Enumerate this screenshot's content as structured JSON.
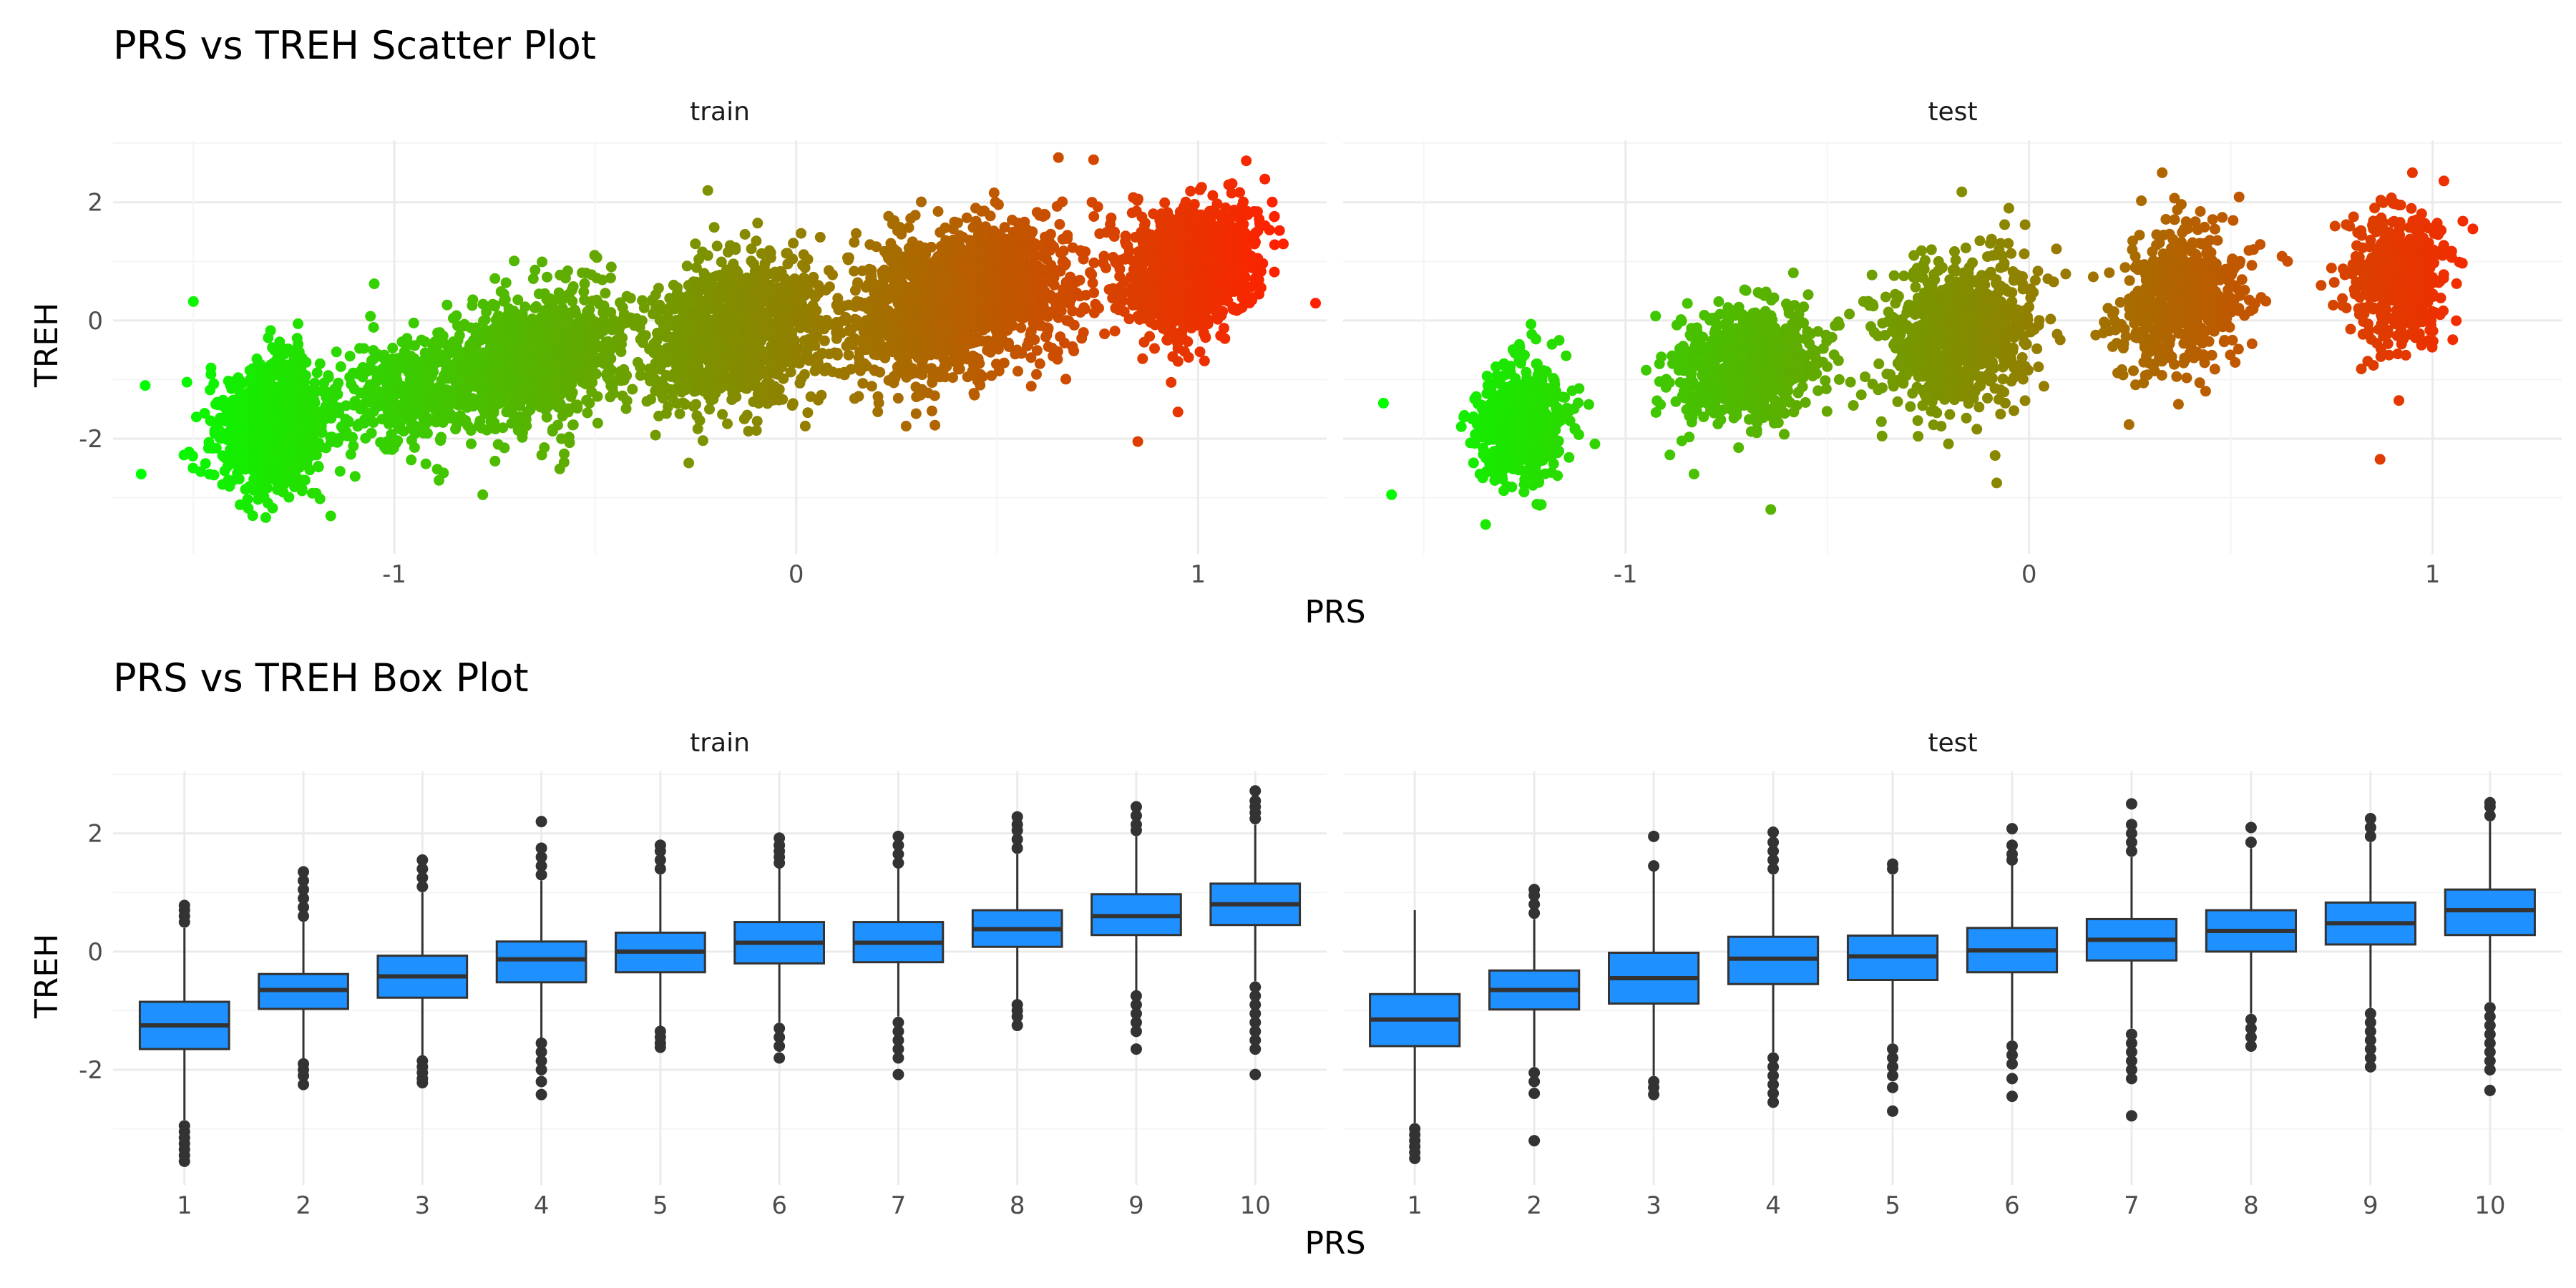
{
  "chart_data": [
    {
      "type": "scatter",
      "title": "PRS vs TREH Scatter Plot",
      "xlabel": "PRS",
      "ylabel": "TREH",
      "facets": [
        "train",
        "test"
      ],
      "xlim": [
        -1.7,
        1.32
      ],
      "ylim": [
        -3.95,
        3.05
      ],
      "x_ticks": [
        -1,
        0,
        1
      ],
      "y_ticks": [
        -2,
        0,
        2
      ],
      "color_scale": {
        "low": "#00ff00",
        "high": "#ff2000",
        "mapped_to": "PRS"
      },
      "grid": true,
      "legend": "none",
      "panels": [
        {
          "name": "train",
          "clusters": [
            {
              "x_center": -1.3,
              "y_center": -1.78,
              "count": 900,
              "x_sd": 0.07,
              "y_sd": 0.55
            },
            {
              "x_center": -0.95,
              "y_center": -1.15,
              "count": 400,
              "x_sd": 0.1,
              "y_sd": 0.5
            },
            {
              "x_center": -0.65,
              "y_center": -0.65,
              "count": 1000,
              "x_sd": 0.11,
              "y_sd": 0.55
            },
            {
              "x_center": -0.15,
              "y_center": -0.25,
              "count": 1100,
              "x_sd": 0.11,
              "y_sd": 0.6
            },
            {
              "x_center": 0.3,
              "y_center": 0.05,
              "count": 700,
              "x_sd": 0.1,
              "y_sd": 0.6
            },
            {
              "x_center": 0.5,
              "y_center": 0.55,
              "count": 900,
              "x_sd": 0.11,
              "y_sd": 0.6
            },
            {
              "x_center": 0.98,
              "y_center": 0.88,
              "count": 1200,
              "x_sd": 0.08,
              "y_sd": 0.5
            }
          ],
          "outliers": [
            [
              -1.5,
              0.32
            ],
            [
              -1.62,
              -1.1
            ],
            [
              -1.63,
              -2.6
            ],
            [
              -1.05,
              0.62
            ],
            [
              -0.22,
              2.2
            ],
            [
              0.74,
              2.72
            ],
            [
              0.85,
              -2.05
            ],
            [
              0.95,
              -1.55
            ],
            [
              -0.78,
              -2.95
            ],
            [
              1.19,
              0.82
            ]
          ]
        },
        {
          "name": "test",
          "clusters": [
            {
              "x_center": -1.26,
              "y_center": -1.75,
              "count": 500,
              "x_sd": 0.06,
              "y_sd": 0.5
            },
            {
              "x_center": -0.7,
              "y_center": -0.75,
              "count": 700,
              "x_sd": 0.09,
              "y_sd": 0.5
            },
            {
              "x_center": -0.18,
              "y_center": -0.2,
              "count": 900,
              "x_sd": 0.09,
              "y_sd": 0.65
            },
            {
              "x_center": 0.38,
              "y_center": 0.35,
              "count": 600,
              "x_sd": 0.08,
              "y_sd": 0.55
            },
            {
              "x_center": 0.92,
              "y_center": 0.72,
              "count": 500,
              "x_sd": 0.06,
              "y_sd": 0.55
            }
          ],
          "outliers": [
            [
              -1.58,
              -2.95
            ],
            [
              -1.6,
              -1.4
            ],
            [
              -0.64,
              -3.2
            ],
            [
              0.33,
              2.5
            ],
            [
              -0.05,
              1.9
            ],
            [
              0.95,
              2.5
            ],
            [
              0.87,
              -2.35
            ],
            [
              -0.08,
              -2.75
            ],
            [
              1.1,
              1.55
            ]
          ]
        }
      ]
    },
    {
      "type": "box",
      "title": "PRS vs TREH Box Plot",
      "xlabel": "PRS",
      "ylabel": "TREH",
      "facets": [
        "train",
        "test"
      ],
      "categories": [
        "1",
        "2",
        "3",
        "4",
        "5",
        "6",
        "7",
        "8",
        "9",
        "10"
      ],
      "ylim": [
        -3.95,
        3.05
      ],
      "y_ticks": [
        -2,
        0,
        2
      ],
      "box_fill": "#1e90ff",
      "box_stroke": "#333333",
      "grid": true,
      "legend": "none",
      "panels": [
        {
          "name": "train",
          "boxes": [
            {
              "q1": -1.65,
              "median": -1.25,
              "q3": -0.85,
              "whisker_low": -2.85,
              "whisker_high": 0.4,
              "outliers": [
                -2.95,
                -3.05,
                -3.15,
                -3.25,
                -3.35,
                -3.45,
                -3.55,
                0.5,
                0.6,
                0.7,
                0.78
              ]
            },
            {
              "q1": -0.97,
              "median": -0.65,
              "q3": -0.38,
              "whisker_low": -1.85,
              "whisker_high": 0.5,
              "outliers": [
                -1.9,
                -2.0,
                -2.1,
                -2.25,
                0.6,
                0.75,
                0.9,
                1.05,
                1.2,
                1.35
              ]
            },
            {
              "q1": -0.78,
              "median": -0.42,
              "q3": -0.07,
              "whisker_low": -1.8,
              "whisker_high": 1.0,
              "outliers": [
                -1.85,
                -1.95,
                -2.05,
                -2.15,
                -2.22,
                1.1,
                1.25,
                1.4,
                1.55
              ]
            },
            {
              "q1": -0.52,
              "median": -0.13,
              "q3": 0.17,
              "whisker_low": -1.5,
              "whisker_high": 1.2,
              "outliers": [
                -1.55,
                -1.7,
                -1.85,
                -2.0,
                -2.2,
                -2.42,
                1.3,
                1.45,
                1.6,
                1.75,
                2.2
              ]
            },
            {
              "q1": -0.35,
              "median": 0.0,
              "q3": 0.32,
              "whisker_low": -1.3,
              "whisker_high": 1.3,
              "outliers": [
                -1.35,
                -1.45,
                -1.55,
                -1.62,
                1.4,
                1.55,
                1.7,
                1.8
              ]
            },
            {
              "q1": -0.2,
              "median": 0.15,
              "q3": 0.5,
              "whisker_low": -1.2,
              "whisker_high": 1.45,
              "outliers": [
                -1.3,
                -1.45,
                -1.6,
                -1.8,
                1.5,
                1.6,
                1.7,
                1.8,
                1.92
              ]
            },
            {
              "q1": -0.18,
              "median": 0.15,
              "q3": 0.5,
              "whisker_low": -1.1,
              "whisker_high": 1.45,
              "outliers": [
                -1.2,
                -1.35,
                -1.5,
                -1.65,
                -1.8,
                -2.08,
                1.5,
                1.65,
                1.8,
                1.95
              ]
            },
            {
              "q1": 0.08,
              "median": 0.38,
              "q3": 0.7,
              "whisker_low": -0.85,
              "whisker_high": 1.65,
              "outliers": [
                -0.9,
                -1.0,
                -1.1,
                -1.25,
                1.75,
                1.9,
                2.05,
                2.15,
                2.28
              ]
            },
            {
              "q1": 0.28,
              "median": 0.6,
              "q3": 0.97,
              "whisker_low": -0.7,
              "whisker_high": 1.95,
              "outliers": [
                -0.75,
                -0.9,
                -1.05,
                -1.2,
                -1.35,
                -1.65,
                2.05,
                2.15,
                2.3,
                2.45
              ]
            },
            {
              "q1": 0.45,
              "median": 0.8,
              "q3": 1.15,
              "whisker_low": -0.5,
              "whisker_high": 2.15,
              "outliers": [
                -0.6,
                -0.75,
                -0.9,
                -1.05,
                -1.2,
                -1.35,
                -1.5,
                -1.65,
                -2.08,
                2.25,
                2.35,
                2.45,
                2.55,
                2.72
              ]
            }
          ]
        },
        {
          "name": "test",
          "boxes": [
            {
              "q1": -1.6,
              "median": -1.15,
              "q3": -0.72,
              "whisker_low": -2.9,
              "whisker_high": 0.7,
              "outliers": [
                -3.0,
                -3.1,
                -3.2,
                -3.3,
                -3.4,
                -3.5
              ]
            },
            {
              "q1": -0.98,
              "median": -0.65,
              "q3": -0.32,
              "whisker_low": -1.95,
              "whisker_high": 0.55,
              "outliers": [
                -2.05,
                -2.2,
                -2.4,
                -3.2,
                0.65,
                0.8,
                0.95,
                1.05
              ]
            },
            {
              "q1": -0.88,
              "median": -0.45,
              "q3": -0.02,
              "whisker_low": -2.1,
              "whisker_high": 1.4,
              "outliers": [
                -2.2,
                -2.3,
                -2.42,
                1.45,
                1.95
              ]
            },
            {
              "q1": -0.55,
              "median": -0.12,
              "q3": 0.25,
              "whisker_low": -1.7,
              "whisker_high": 1.3,
              "outliers": [
                -1.8,
                -1.95,
                -2.1,
                -2.25,
                -2.4,
                -2.55,
                1.4,
                1.55,
                1.7,
                1.85,
                2.02
              ]
            },
            {
              "q1": -0.48,
              "median": -0.08,
              "q3": 0.27,
              "whisker_low": -1.55,
              "whisker_high": 1.3,
              "outliers": [
                -1.65,
                -1.8,
                -1.95,
                -2.1,
                -2.3,
                -2.7,
                1.4,
                1.48
              ]
            },
            {
              "q1": -0.35,
              "median": 0.02,
              "q3": 0.4,
              "whisker_low": -1.5,
              "whisker_high": 1.5,
              "outliers": [
                -1.6,
                -1.75,
                -1.9,
                -2.15,
                -2.45,
                1.55,
                1.65,
                1.8,
                2.08
              ]
            },
            {
              "q1": -0.15,
              "median": 0.2,
              "q3": 0.55,
              "whisker_low": -1.3,
              "whisker_high": 1.6,
              "outliers": [
                -1.4,
                -1.55,
                -1.7,
                -1.85,
                -2.0,
                -2.15,
                -2.78,
                1.7,
                1.85,
                2.0,
                2.15,
                2.5
              ]
            },
            {
              "q1": 0.0,
              "median": 0.35,
              "q3": 0.7,
              "whisker_low": -1.05,
              "whisker_high": 1.75,
              "outliers": [
                -1.15,
                -1.3,
                -1.45,
                -1.6,
                1.85,
                2.1
              ]
            },
            {
              "q1": 0.12,
              "median": 0.48,
              "q3": 0.83,
              "whisker_low": -0.95,
              "whisker_high": 1.85,
              "outliers": [
                -1.05,
                -1.2,
                -1.35,
                -1.5,
                -1.65,
                -1.8,
                -1.95,
                1.95,
                2.1,
                2.25
              ]
            },
            {
              "q1": 0.28,
              "median": 0.7,
              "q3": 1.05,
              "whisker_low": -0.85,
              "whisker_high": 2.2,
              "outliers": [
                -0.95,
                -1.1,
                -1.25,
                -1.4,
                -1.55,
                -1.7,
                -1.85,
                -2.0,
                -2.35,
                2.3,
                2.45,
                2.52
              ]
            }
          ]
        }
      ]
    }
  ]
}
